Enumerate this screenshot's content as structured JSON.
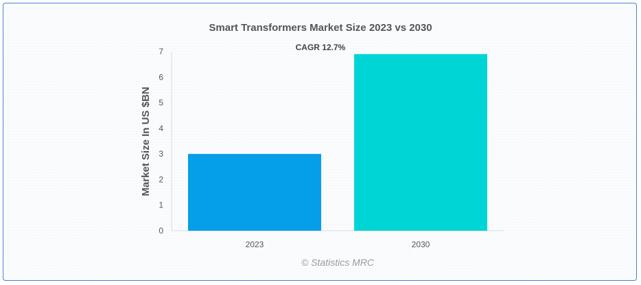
{
  "chart_data": {
    "type": "bar",
    "title": "Smart Transformers Market Size 2023 vs 2030",
    "subtitle": "CAGR 12.7%",
    "xlabel": "",
    "ylabel": "Market Size In US $BN",
    "categories": [
      "2023",
      "2030"
    ],
    "values": [
      3.0,
      6.9
    ],
    "colors": [
      "#059ee9",
      "#00d5d6"
    ],
    "ylim": [
      0,
      7
    ],
    "yticks": [
      0,
      1,
      2,
      3,
      4,
      5,
      6,
      7
    ],
    "grid": false,
    "legend": "none"
  },
  "credit": "© Statistics MRC"
}
